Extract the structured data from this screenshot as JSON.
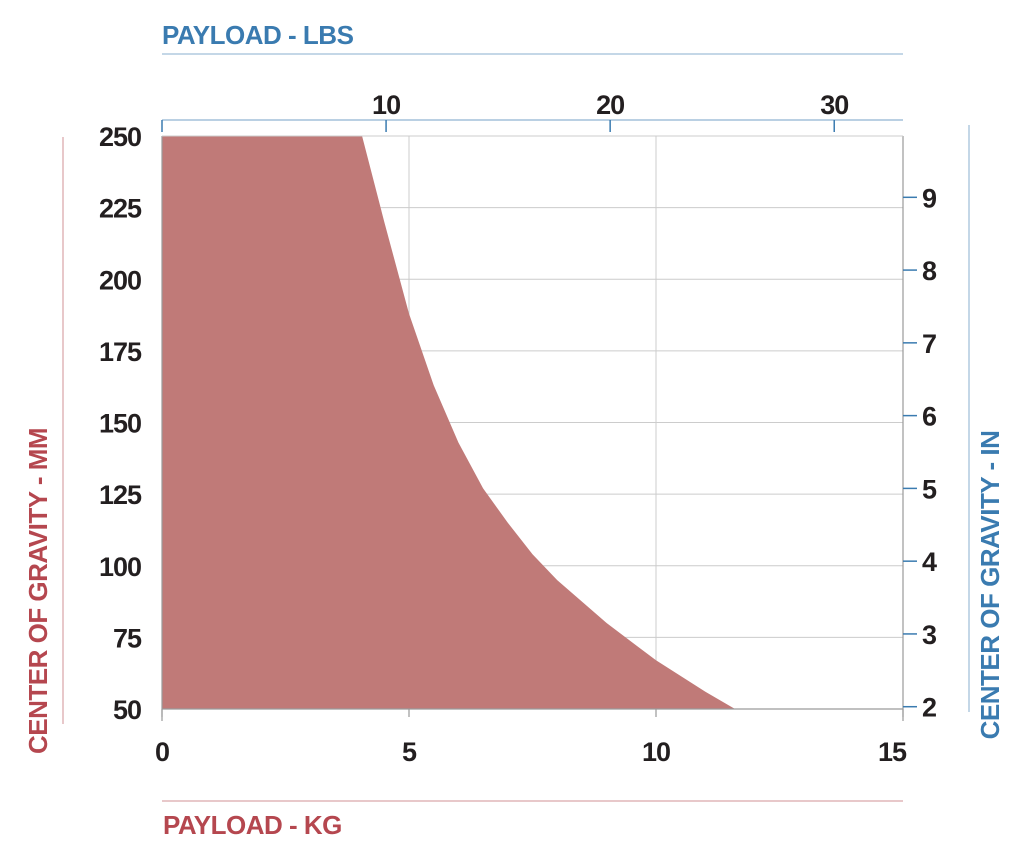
{
  "chart_data": {
    "type": "area",
    "x_bottom": {
      "label": "PAYLOAD - KG",
      "ticks": [
        "0",
        "5",
        "10",
        "15"
      ],
      "range": [
        0,
        15
      ]
    },
    "x_top": {
      "label": "PAYLOAD - LBS",
      "ticks": [
        "10",
        "20",
        "30"
      ]
    },
    "y_left": {
      "label": "CENTER OF GRAVITY - MM",
      "ticks": [
        "50",
        "75",
        "100",
        "125",
        "150",
        "175",
        "200",
        "225",
        "250"
      ],
      "range": [
        50,
        250
      ]
    },
    "y_right": {
      "label": "CENTER OF GRAVITY - IN",
      "ticks": [
        "2",
        "3",
        "4",
        "5",
        "6",
        "7",
        "8",
        "9"
      ]
    },
    "grid": true,
    "series": [
      {
        "x": [
          0,
          4.05,
          4.5,
          5,
          5.5,
          6,
          6.5,
          7,
          7.5,
          8,
          9,
          10,
          11,
          11.6,
          0
        ],
        "y": [
          250,
          250,
          220,
          188,
          163,
          143,
          127,
          115,
          104,
          95,
          80,
          67,
          56,
          50,
          50
        ]
      }
    ],
    "colors": {
      "fill": "#c07a78",
      "metric": "#b5474f",
      "imperial": "#3a7bb0",
      "grid": "#cccccc",
      "text": "#231f20"
    }
  }
}
